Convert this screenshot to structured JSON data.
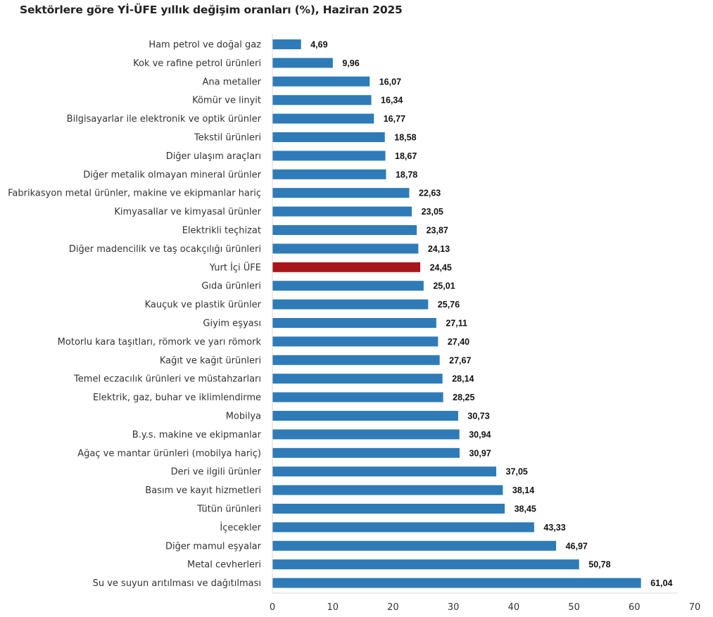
{
  "chart_data": {
    "type": "bar",
    "orientation": "horizontal",
    "title": "Sektörlere göre Yİ-ÜFE yıllık değişim oranları (%), Haziran 2025",
    "xlabel": "",
    "ylabel": "",
    "xlim": [
      0,
      70
    ],
    "xticks": [
      0,
      10,
      20,
      30,
      40,
      50,
      60,
      70
    ],
    "xtick_labels": [
      "0",
      "10",
      "20",
      "30",
      "40",
      "50",
      "60",
      "70"
    ],
    "grid": false,
    "legend": null,
    "colors": {
      "default": "#2E7BB8",
      "highlight": "#A8161B"
    },
    "categories": [
      "Ham petrol ve doğal gaz",
      "Kok ve rafine petrol ürünleri",
      "Ana metaller",
      "Kömür ve linyit",
      "Bilgisayarlar ile elektronik ve optik ürünler",
      "Tekstil ürünleri",
      "Diğer ulaşım araçları",
      "Diğer metalik olmayan mineral ürünler",
      "Fabrikasyon metal ürünler, makine ve ekipmanlar hariç",
      "Kimyasallar ve kimyasal ürünler",
      "Elektrikli teçhizat",
      "Diğer madencilik ve taş ocakçılığı ürünleri",
      "Yurt İçi ÜFE",
      "Gıda ürünleri",
      "Kauçuk ve plastik ürünler",
      "Giyim eşyası",
      "Motorlu kara taşıtları, römork ve yarı römork",
      "Kağıt ve kağıt ürünleri",
      "Temel eczacılık ürünleri ve müstahzarları",
      "Elektrik, gaz, buhar ve iklimlendirme",
      "Mobilya",
      "B.y.s. makine ve ekipmanlar",
      "Ağaç ve mantar ürünleri (mobilya hariç)",
      "Deri ve ilgili ürünler",
      "Basım ve kayıt hizmetleri",
      "Tütün ürünleri",
      "İçecekler",
      "Diğer mamul eşyalar",
      "Metal cevherleri",
      "Su ve suyun arıtılması ve dağıtılması"
    ],
    "values": [
      4.69,
      9.96,
      16.07,
      16.34,
      16.77,
      18.58,
      18.67,
      18.78,
      22.63,
      23.05,
      23.87,
      24.13,
      24.45,
      25.01,
      25.76,
      27.11,
      27.4,
      27.67,
      28.14,
      28.25,
      30.73,
      30.94,
      30.97,
      37.05,
      38.14,
      38.45,
      43.33,
      46.97,
      50.78,
      61.04
    ],
    "value_labels": [
      "4,69",
      "9,96",
      "16,07",
      "16,34",
      "16,77",
      "18,58",
      "18,67",
      "18,78",
      "22,63",
      "23,05",
      "23,87",
      "24,13",
      "24,45",
      "25,01",
      "25,76",
      "27,11",
      "27,40",
      "27,67",
      "28,14",
      "28,25",
      "30,73",
      "30,94",
      "30,97",
      "37,05",
      "38,14",
      "38,45",
      "43,33",
      "46,97",
      "50,78",
      "61,04"
    ],
    "highlight_index": 12
  }
}
